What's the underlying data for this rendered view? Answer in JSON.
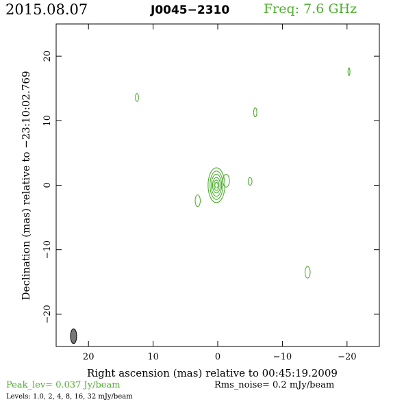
{
  "header": {
    "date": "2015.08.07",
    "source": "J0045−2310",
    "frequency": "Freq: 7.6 GHz"
  },
  "footer": {
    "peak": "Peak_lev=  0.037 Jy/beam",
    "rms": "Rms_noise=   0.2 mJy/beam",
    "levels": "Levels: 1.0,   2,   4,   8,  16,  32 mJy/beam"
  },
  "colors": {
    "contour": "#4caf2c",
    "beam": "#777777",
    "frame": "#000000"
  },
  "chart_data": {
    "type": "contour",
    "xlabel": "Right ascension (mas) relative to 00:45:19.2009",
    "ylabel": "Declination (mas) relative to −23:10:02.769",
    "xlim": [
      25,
      -25
    ],
    "ylim": [
      -25,
      25
    ],
    "x_ticks": [
      20,
      10,
      0,
      -10,
      -20
    ],
    "y_ticks": [
      20,
      10,
      0,
      -10,
      -20
    ],
    "x_tick_labels": [
      "20",
      "10",
      "0",
      "−10",
      "−20"
    ],
    "y_tick_labels": [
      "20",
      "10",
      "0",
      "−10",
      "−20"
    ],
    "contour_levels_mJy": [
      1.0,
      2,
      4,
      8,
      16,
      32
    ],
    "peak_Jy_per_beam": 0.037,
    "core": {
      "x": 0.2,
      "y": 0.0,
      "rings": [
        [
          1.3,
          2.7
        ],
        [
          1.0,
          2.2
        ],
        [
          0.8,
          1.7
        ],
        [
          0.6,
          1.2
        ],
        [
          0.4,
          0.8
        ],
        [
          0.25,
          0.45
        ]
      ]
    },
    "components": [
      {
        "x": -1.3,
        "y": 0.7,
        "rx": 0.5,
        "ry": 1.0
      },
      {
        "x": 12.5,
        "y": 13.6,
        "rx": 0.25,
        "ry": 0.6
      },
      {
        "x": -5.8,
        "y": 11.3,
        "rx": 0.25,
        "ry": 0.7
      },
      {
        "x": -20.3,
        "y": 17.6,
        "rx": 0.15,
        "ry": 0.6
      },
      {
        "x": -5.0,
        "y": 0.6,
        "rx": 0.3,
        "ry": 0.6
      },
      {
        "x": 3.1,
        "y": -2.4,
        "rx": 0.4,
        "ry": 0.9
      },
      {
        "x": -13.9,
        "y": -13.5,
        "rx": 0.4,
        "ry": 0.9
      }
    ],
    "beam": {
      "x": 22.3,
      "y": -23.4,
      "major": 2.3,
      "minor": 0.95,
      "pa_deg": 0
    }
  }
}
